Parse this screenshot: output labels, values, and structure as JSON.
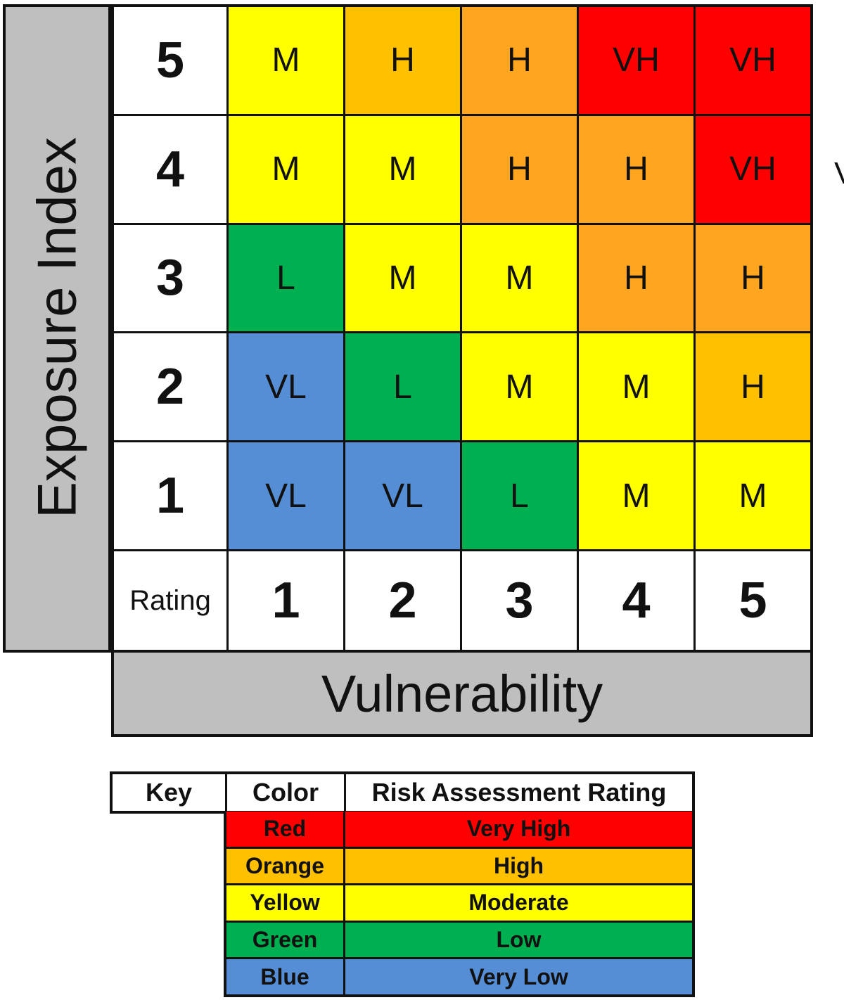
{
  "axes": {
    "y_label": "Exposure Index",
    "x_label": "Vulnerability",
    "rating_label": "Rating",
    "edge_glyph": "V"
  },
  "colors": {
    "VH": "#ff0000",
    "H_orange": "#ffc000",
    "H_dark": "#ffa51f",
    "M": "#ffff00",
    "L": "#00b050",
    "VL": "#558ed5",
    "axis_gray": "#bfbfbf"
  },
  "matrix": {
    "rows": [
      {
        "exposure": "5",
        "cells": [
          {
            "label": "M",
            "color": "#ffff00"
          },
          {
            "label": "H",
            "color": "#ffc000"
          },
          {
            "label": "H",
            "color": "#ffa51f"
          },
          {
            "label": "VH",
            "color": "#ff0000"
          },
          {
            "label": "VH",
            "color": "#ff0000"
          }
        ]
      },
      {
        "exposure": "4",
        "cells": [
          {
            "label": "M",
            "color": "#ffff00"
          },
          {
            "label": "M",
            "color": "#ffff00"
          },
          {
            "label": "H",
            "color": "#ffa51f"
          },
          {
            "label": "H",
            "color": "#ffa51f"
          },
          {
            "label": "VH",
            "color": "#ff0000"
          }
        ]
      },
      {
        "exposure": "3",
        "cells": [
          {
            "label": "L",
            "color": "#00b050"
          },
          {
            "label": "M",
            "color": "#ffff00"
          },
          {
            "label": "M",
            "color": "#ffff00"
          },
          {
            "label": "H",
            "color": "#ffa51f"
          },
          {
            "label": "H",
            "color": "#ffa51f"
          }
        ]
      },
      {
        "exposure": "2",
        "cells": [
          {
            "label": "VL",
            "color": "#558ed5"
          },
          {
            "label": "L",
            "color": "#00b050"
          },
          {
            "label": "M",
            "color": "#ffff00"
          },
          {
            "label": "M",
            "color": "#ffff00"
          },
          {
            "label": "H",
            "color": "#ffc000"
          }
        ]
      },
      {
        "exposure": "1",
        "cells": [
          {
            "label": "VL",
            "color": "#558ed5"
          },
          {
            "label": "VL",
            "color": "#558ed5"
          },
          {
            "label": "L",
            "color": "#00b050"
          },
          {
            "label": "M",
            "color": "#ffff00"
          },
          {
            "label": "M",
            "color": "#ffff00"
          }
        ]
      }
    ],
    "vulnerability_ratings": [
      "1",
      "2",
      "3",
      "4",
      "5"
    ]
  },
  "key": {
    "headers": {
      "key": "Key",
      "color": "Color",
      "rating": "Risk Assessment Rating"
    },
    "rows": [
      {
        "color_name": "Red",
        "rating": "Very High",
        "color": "#ff0000"
      },
      {
        "color_name": "Orange",
        "rating": "High",
        "color": "#ffc000"
      },
      {
        "color_name": "Yellow",
        "rating": "Moderate",
        "color": "#ffff00"
      },
      {
        "color_name": "Green",
        "rating": "Low",
        "color": "#00b050"
      },
      {
        "color_name": "Blue",
        "rating": "Very Low",
        "color": "#558ed5"
      }
    ]
  }
}
